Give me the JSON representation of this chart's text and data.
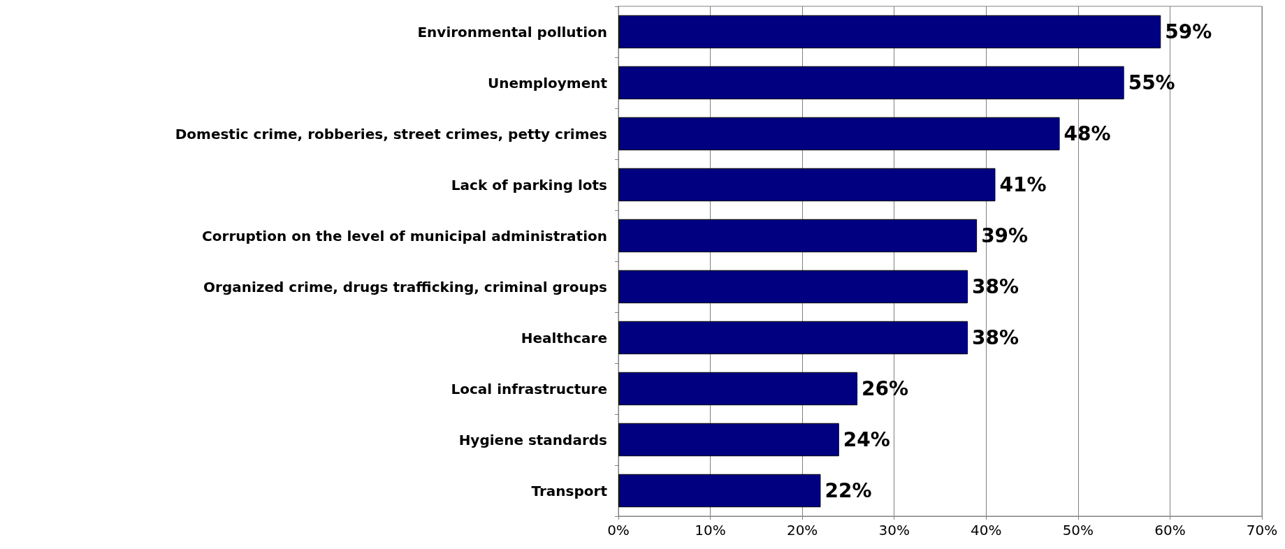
{
  "chart_data": {
    "type": "bar",
    "orientation": "horizontal",
    "categories": [
      "Environmental pollution",
      "Unemployment",
      "Domestic crime, robberies, street crimes, petty crimes",
      "Lack of parking lots",
      "Corruption on the level of municipal administration",
      "Organized crime, drugs trafficking, criminal groups",
      "Healthcare",
      "Local infrastructure",
      "Hygiene standards",
      "Transport"
    ],
    "values": [
      59,
      55,
      48,
      41,
      39,
      38,
      38,
      26,
      24,
      22
    ],
    "value_labels": [
      "59%",
      "55%",
      "48%",
      "41%",
      "39%",
      "38%",
      "38%",
      "26%",
      "24%",
      "22%"
    ],
    "color": "#000080",
    "xlim": [
      0,
      70
    ],
    "xticks": [
      {
        "value": 0,
        "label": "0%"
      },
      {
        "value": 10,
        "label": "10%"
      },
      {
        "value": 20,
        "label": "20%"
      },
      {
        "value": 30,
        "label": "30%"
      },
      {
        "value": 40,
        "label": "40%"
      },
      {
        "value": 50,
        "label": "50%"
      },
      {
        "value": 60,
        "label": "60%"
      },
      {
        "value": 70,
        "label": "70%"
      }
    ],
    "grid": "x"
  }
}
